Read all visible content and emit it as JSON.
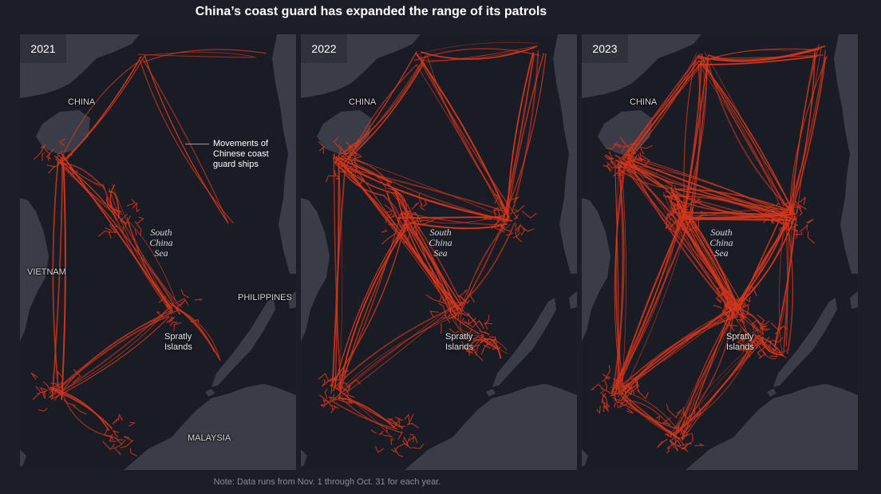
{
  "title": "China’s coast guard has expanded the range of its patrols",
  "note": "Note: Data runs from Nov. 1 through Oct. 31 for each year.",
  "colors": {
    "background": "#1b1d27",
    "land": "#3a3d47",
    "tracks": "#d4361c"
  },
  "labels": {
    "china": "CHINA",
    "vietnam": "VIETNAM",
    "philippines": "PHILIPPINES",
    "malaysia": "MALAYSIA",
    "sea_line1": "South",
    "sea_line2": "China",
    "sea_line3": "Sea",
    "spratly_line1": "Spratly",
    "spratly_line2": "Islands"
  },
  "annotation": {
    "line1": "Movements of",
    "line2": "Chinese coast",
    "line3": "guard ships"
  },
  "panels": [
    {
      "year": "2021"
    },
    {
      "year": "2022"
    },
    {
      "year": "2023"
    }
  ]
}
